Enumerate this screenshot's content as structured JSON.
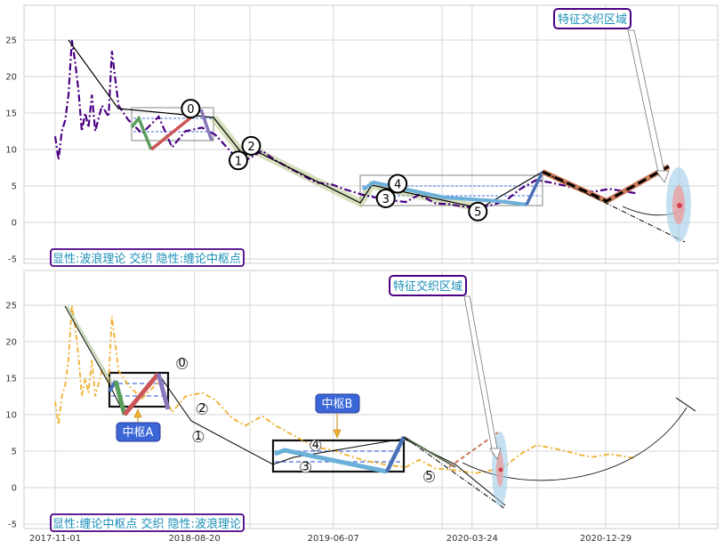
{
  "chart_data": [
    {
      "type": "line",
      "annotation_corner": "显性:波浪理论 交织 隐性:缠论中枢点",
      "feature_label": "特征交织区域",
      "ylim": [
        -5.5,
        29.5
      ],
      "yticks": [
        -5,
        0,
        5,
        10,
        15,
        20,
        25
      ],
      "grid": true,
      "price_series": [
        {
          "x": "2017-11-01",
          "y": 11.8
        },
        {
          "x": "2017-11-08",
          "y": 8.6
        },
        {
          "x": "2017-11-15",
          "y": 12.5
        },
        {
          "x": "2017-11-22",
          "y": 14.0
        },
        {
          "x": "2017-11-29",
          "y": 17.5
        },
        {
          "x": "2017-12-06",
          "y": 25.0
        },
        {
          "x": "2017-12-13",
          "y": 22.0
        },
        {
          "x": "2017-12-20",
          "y": 18.0
        },
        {
          "x": "2017-12-27",
          "y": 12.5
        },
        {
          "x": "2018-01-03",
          "y": 15.0
        },
        {
          "x": "2018-01-10",
          "y": 13.0
        },
        {
          "x": "2018-01-17",
          "y": 17.5
        },
        {
          "x": "2018-01-24",
          "y": 12.5
        },
        {
          "x": "2018-02-07",
          "y": 16.0
        },
        {
          "x": "2018-02-21",
          "y": 14.5
        },
        {
          "x": "2018-02-28",
          "y": 23.5
        },
        {
          "x": "2018-03-14",
          "y": 16.0
        },
        {
          "x": "2018-04-04",
          "y": 14.0
        },
        {
          "x": "2018-05-02",
          "y": 12.2
        },
        {
          "x": "2018-06-06",
          "y": 14.5
        },
        {
          "x": "2018-07-04",
          "y": 10.3
        },
        {
          "x": "2018-08-01",
          "y": 12.5
        },
        {
          "x": "2018-09-05",
          "y": 13.0
        },
        {
          "x": "2018-10-03",
          "y": 12.0
        },
        {
          "x": "2018-11-07",
          "y": 9.5
        },
        {
          "x": "2018-12-05",
          "y": 8.5
        },
        {
          "x": "2019-01-09",
          "y": 9.8
        },
        {
          "x": "2019-02-06",
          "y": 8.5
        },
        {
          "x": "2019-03-06",
          "y": 7.5
        },
        {
          "x": "2019-04-03",
          "y": 6.5
        },
        {
          "x": "2019-05-01",
          "y": 5.5
        },
        {
          "x": "2019-06-05",
          "y": 5.2
        },
        {
          "x": "2019-07-03",
          "y": 4.5
        },
        {
          "x": "2019-08-07",
          "y": 3.8
        },
        {
          "x": "2019-09-04",
          "y": 3.4
        },
        {
          "x": "2019-10-09",
          "y": 3.0
        },
        {
          "x": "2019-11-06",
          "y": 2.8
        },
        {
          "x": "2019-12-04",
          "y": 3.8
        },
        {
          "x": "2020-01-08",
          "y": 2.6
        },
        {
          "x": "2020-02-05",
          "y": 2.5
        },
        {
          "x": "2020-03-04",
          "y": 2.2
        },
        {
          "x": "2020-04-01",
          "y": 2.0
        },
        {
          "x": "2020-05-06",
          "y": 2.4
        },
        {
          "x": "2020-06-03",
          "y": 3.0
        },
        {
          "x": "2020-07-01",
          "y": 4.5
        },
        {
          "x": "2020-08-05",
          "y": 5.8
        },
        {
          "x": "2020-09-02",
          "y": 5.5
        },
        {
          "x": "2020-10-07",
          "y": 5.0
        },
        {
          "x": "2020-11-04",
          "y": 4.5
        },
        {
          "x": "2020-12-02",
          "y": 4.2
        },
        {
          "x": "2021-01-06",
          "y": 4.6
        },
        {
          "x": "2021-02-03",
          "y": 4.3
        },
        {
          "x": "2021-03-03",
          "y": 4.0
        }
      ],
      "wave_points": [
        {
          "label": "0",
          "x": "2018-08-12",
          "y": 15.6
        },
        {
          "label": "1",
          "x": "2018-11-20",
          "y": 8.5
        },
        {
          "label": "2",
          "x": "2018-12-17",
          "y": 10.5
        },
        {
          "label": "3",
          "x": "2019-09-25",
          "y": 3.3
        },
        {
          "label": "4",
          "x": "2019-10-20",
          "y": 5.3
        },
        {
          "label": "5",
          "x": "2020-04-05",
          "y": 1.5
        }
      ],
      "zones": [
        {
          "x0": "2018-04-10",
          "x1": "2018-08-30",
          "y0": 11.2,
          "y1": 15.7
        },
        {
          "x0": "2019-10-01",
          "x1": "2020-06-10",
          "y0": 2.2,
          "y1": 6.5
        }
      ]
    },
    {
      "type": "line",
      "annotation_corner": "显性:缠论中枢点 交织 隐性:波浪理论",
      "feature_label": "特征交织区域",
      "pivot_labels": [
        "中枢A",
        "中枢B"
      ],
      "ylim": [
        -5.5,
        29.5
      ],
      "yticks": [
        -5,
        0,
        5,
        10,
        15,
        20,
        25
      ],
      "xticks": [
        "2017-11-01",
        "2018-08-20",
        "2019-06-07",
        "2020-03-24",
        "2020-12-29"
      ],
      "grid": true,
      "wave_points": [
        {
          "label": "0",
          "x": "2018-07-25",
          "y": 17.0
        },
        {
          "label": "1",
          "x": "2018-08-28",
          "y": 7.0
        },
        {
          "label": "2",
          "x": "2018-09-05",
          "y": 10.8
        },
        {
          "label": "3",
          "x": "2019-04-10",
          "y": 2.8
        },
        {
          "label": "4",
          "x": "2019-05-01",
          "y": 5.8
        },
        {
          "label": "5",
          "x": "2019-12-25",
          "y": 1.5
        }
      ],
      "zones": [
        {
          "x0": "2018-03-25",
          "x1": "2018-07-25",
          "y0": 11.2,
          "y1": 15.7
        },
        {
          "x0": "2019-04-10",
          "x1": "2020-01-20",
          "y0": 2.2,
          "y1": 6.5
        }
      ]
    }
  ]
}
